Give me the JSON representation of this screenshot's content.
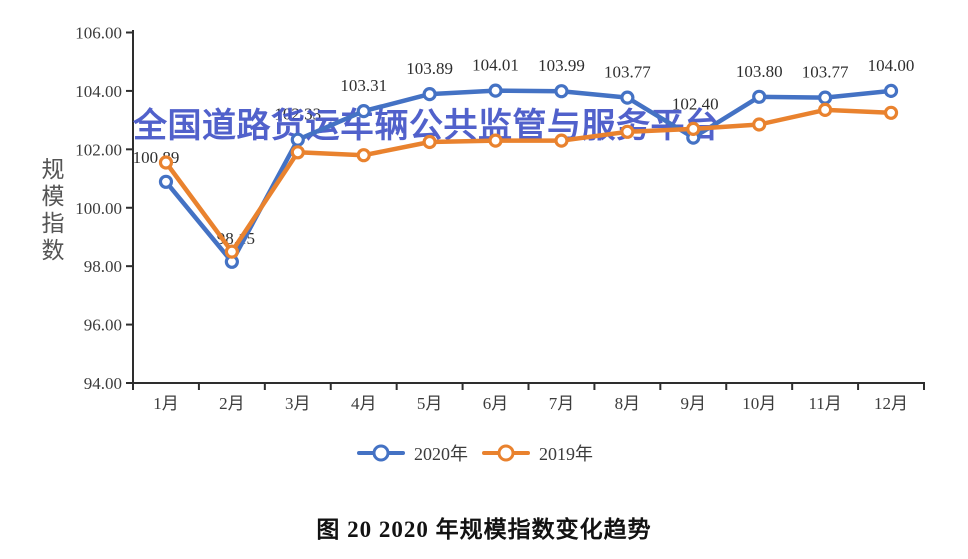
{
  "watermark": "全国道路货运车辆公共监管与服务平台",
  "figure_caption": "图 20  2020 年规模指数变化趋势",
  "chart_data": {
    "type": "line",
    "title": "图 20 2020 年规模指数变化趋势",
    "ylabel": "规模指数",
    "categories": [
      "1月",
      "2月",
      "3月",
      "4月",
      "5月",
      "6月",
      "7月",
      "8月",
      "9月",
      "10月",
      "11月",
      "12月"
    ],
    "ylim": [
      94,
      106
    ],
    "ytick_step": 2,
    "ytick_decimals": 2,
    "grid": false,
    "legend_position": "bottom",
    "axis_color": "#2e2e2e",
    "text_color": "#3c3c3c",
    "point_label_color": "#2e2e2e",
    "watermark_color": "#4456c8",
    "series": [
      {
        "name": "2020年",
        "color": "#4472c4",
        "values": [
          100.89,
          98.15,
          102.33,
          103.31,
          103.89,
          104.01,
          103.99,
          103.77,
          102.4,
          103.8,
          103.77,
          104.0
        ],
        "point_labels": [
          "100.89",
          "98.15",
          "102.33",
          "103.31",
          "103.89",
          "104.01",
          "103.99",
          "103.77",
          "102.40",
          "103.80",
          "103.77",
          "104.00"
        ],
        "label_offsets": {
          "default": [
            0,
            -20
          ],
          "overrides": {
            "0": [
              -10,
              -19
            ],
            "1": [
              4,
              -18
            ],
            "8": [
              2,
              -28
            ]
          }
        }
      },
      {
        "name": "2019年",
        "color": "#e9822e",
        "values": [
          101.55,
          98.5,
          101.9,
          101.8,
          102.25,
          102.3,
          102.3,
          102.6,
          102.7,
          102.85,
          103.35,
          103.25
        ],
        "point_labels": null
      }
    ]
  }
}
